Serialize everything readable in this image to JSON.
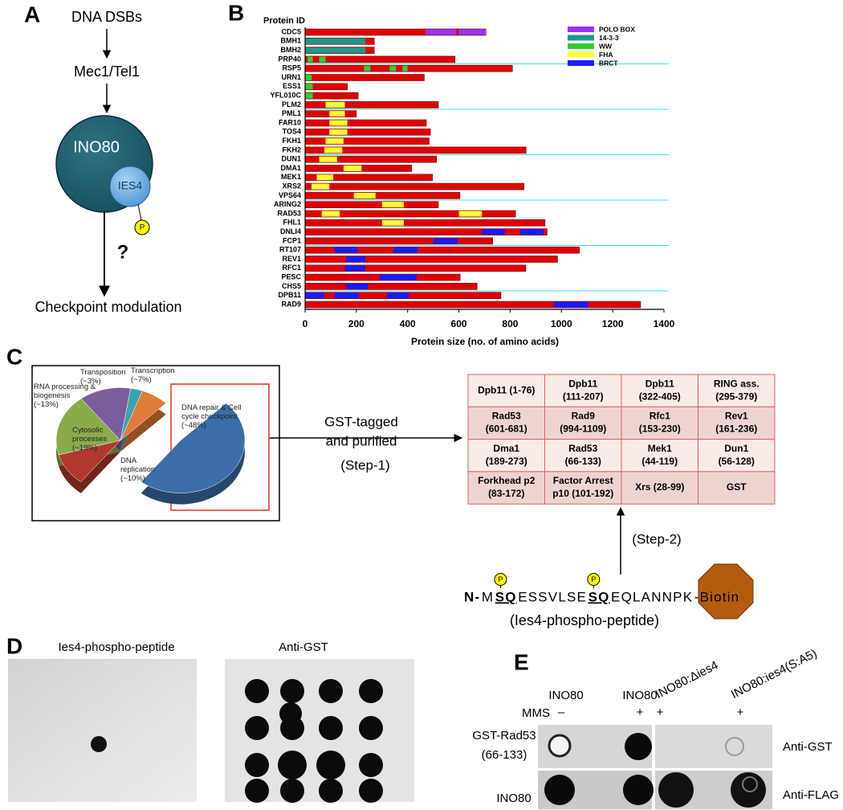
{
  "panel_labels": [
    "A",
    "B",
    "C",
    "D",
    "E"
  ],
  "panel_a": {
    "top": "DNA DSBs",
    "kinase": "Mec1/Tel1",
    "complex": "INO80",
    "subunit": "IES4",
    "phospho": "P",
    "question": "?",
    "outcome": "Checkpoint modulation"
  },
  "chart_data": [
    {
      "type": "bar",
      "horizontal": true,
      "y_header": "Protein ID",
      "xlabel": "Protein size (no. of amino acids)",
      "categories": [
        "CDC5",
        "BMH1",
        "BMH2",
        "PRP40",
        "RSP5",
        "URN1",
        "ESS1",
        "YFL010C",
        "PLM2",
        "PML1",
        "FAR10",
        "TOS4",
        "FKH1",
        "FKH2",
        "DUN1",
        "DMA1",
        "MEK1",
        "XRS2",
        "VPS64",
        "ARING2",
        "RAD53",
        "FHL1",
        "DNLI4",
        "FCP1",
        "RT107",
        "REV1",
        "RFC1",
        "PESC",
        "CHS5",
        "DPB11",
        "RAD9"
      ],
      "values": [
        705,
        270,
        270,
        585,
        809,
        465,
        165,
        207,
        520,
        200,
        473,
        489,
        484,
        862,
        513,
        416,
        497,
        854,
        604,
        520,
        821,
        936,
        944,
        732,
        1070,
        985,
        861,
        605,
        671,
        764,
        1309
      ],
      "color": "#e00000",
      "domains": [
        {
          "name": "POLO BOX",
          "color": "#9933ff",
          "intervals": [
            [
              [
                470,
                590
              ],
              [
                600,
                705
              ]
            ],
            [],
            [],
            [],
            [],
            [],
            [],
            [],
            [],
            [],
            [],
            [],
            [],
            [],
            [],
            [],
            [],
            [],
            [],
            [],
            [],
            [],
            [],
            [],
            [],
            [],
            [],
            [],
            [],
            [],
            []
          ]
        },
        {
          "name": "14-3-3",
          "color": "#1a9a8a",
          "intervals": [
            [],
            [
              [
                0,
                235
              ]
            ],
            [
              [
                0,
                235
              ]
            ],
            [],
            [],
            [],
            [],
            [],
            [],
            [],
            [],
            [],
            [],
            [],
            [],
            [],
            [],
            [],
            [],
            [],
            [],
            [],
            [],
            [],
            [],
            [],
            [],
            [],
            [],
            [],
            []
          ]
        },
        {
          "name": "WW",
          "color": "#33cc33",
          "intervals": [
            [],
            [],
            [],
            [
              [
                10,
                30
              ],
              [
                55,
                80
              ]
            ],
            [
              [
                230,
                255
              ],
              [
                330,
                355
              ],
              [
                380,
                400
              ]
            ],
            [
              [
                0,
                25
              ]
            ],
            [
              [
                0,
                30
              ]
            ],
            [
              [
                0,
                30
              ]
            ],
            [],
            [],
            [],
            [],
            [],
            [],
            [],
            [],
            [],
            [],
            [],
            [],
            [],
            [],
            [],
            [],
            [],
            [],
            [],
            [],
            [],
            [],
            []
          ]
        },
        {
          "name": "FHA",
          "color": "#ffff33",
          "intervals": [
            [],
            [],
            [],
            [],
            [],
            [],
            [],
            [],
            [
              [
                80,
                155
              ]
            ],
            [
              [
                95,
                155
              ]
            ],
            [
              [
                95,
                165
              ]
            ],
            [
              [
                95,
                165
              ]
            ],
            [
              [
                80,
                150
              ]
            ],
            [
              [
                75,
                145
              ]
            ],
            [
              [
                55,
                125
              ]
            ],
            [
              [
                150,
                220
              ]
            ],
            [
              [
                45,
                110
              ]
            ],
            [
              [
                25,
                95
              ]
            ],
            [
              [
                190,
                275
              ]
            ],
            [
              [
                300,
                385
              ]
            ],
            [
              [
                65,
                135
              ],
              [
                600,
                690
              ]
            ],
            [
              [
                300,
                385
              ]
            ],
            [],
            [],
            [],
            [],
            [],
            [],
            [],
            [],
            []
          ]
        },
        {
          "name": "BRCT",
          "color": "#1a1aff",
          "intervals": [
            [],
            [],
            [],
            [],
            [],
            [],
            [],
            [],
            [],
            [],
            [],
            [],
            [],
            [],
            [],
            [],
            [],
            [],
            [],
            [],
            [],
            [],
            [
              [
                690,
                780
              ],
              [
                840,
                930
              ]
            ],
            [
              [
                500,
                595
              ]
            ],
            [
              [
                115,
                205
              ],
              [
                345,
                440
              ]
            ],
            [
              [
                160,
                235
              ]
            ],
            [
              [
                155,
                235
              ]
            ],
            [
              [
                290,
                435
              ]
            ],
            [
              [
                160,
                245
              ]
            ],
            [
              [
                0,
                75
              ],
              [
                115,
                210
              ],
              [
                320,
                405
              ]
            ],
            [
              [
                970,
                1105
              ]
            ]
          ]
        }
      ],
      "xlim": [
        0,
        1400
      ],
      "xticks": [
        0,
        200,
        400,
        600,
        800,
        1000,
        1200,
        1400
      ]
    },
    {
      "type": "pie",
      "categories": [
        "Transcription",
        "DNA repair & Cell cycle checkpoint",
        "DNA replication",
        "Cytosolic processes",
        "RNA processing & biogenesis",
        "Transposition"
      ],
      "values": [
        7,
        48,
        10,
        19,
        13,
        3
      ],
      "value_labels": [
        "(~7%)",
        "(~48%)",
        "(~10%)",
        "(~19%)",
        "(~13%)",
        "(~3%)"
      ],
      "colors": [
        "#e07b39",
        "#3b6ea8",
        "#b0392f",
        "#8bab4b",
        "#7b5c9c",
        "#3aa3ad"
      ],
      "explode": [
        false,
        true,
        false,
        false,
        false,
        false
      ]
    }
  ],
  "panel_c": {
    "arrow_label": [
      "GST-tagged",
      "and purified",
      "(Step-1)"
    ],
    "table": {
      "rows": [
        [
          [
            "Dpb11 (1-76)"
          ],
          [
            "Dpb11",
            "(111-207)"
          ],
          [
            "Dpb11",
            "(322-405)"
          ],
          [
            "RING ass.",
            "(295-379)"
          ]
        ],
        [
          [
            "Rad53",
            "(601-681)"
          ],
          [
            "Rad9",
            "(994-1109)"
          ],
          [
            "Rfc1",
            "(153-230)"
          ],
          [
            "Rev1",
            "(161-236)"
          ]
        ],
        [
          [
            "Dma1",
            "(189-273)"
          ],
          [
            "Rad53",
            "(66-133)"
          ],
          [
            "Mek1",
            "(44-119)"
          ],
          [
            "Dun1",
            "(56-128)"
          ]
        ],
        [
          [
            "Forkhead p2",
            "(83-172)"
          ],
          [
            "Factor Arrest",
            "p10 (101-192)"
          ],
          [
            "Xrs (28-99)"
          ],
          [
            "GST"
          ]
        ]
      ]
    },
    "step2": "(Step-2)",
    "peptide": {
      "segments": [
        "N-",
        "M",
        {
          "text": "SQ",
          "phospho": "P"
        },
        "ESSVLSE",
        {
          "text": "SQ",
          "phospho": "P"
        },
        "EQLANNPK",
        "-Biotin"
      ],
      "caption": "(Ies4-phospho-peptide)"
    }
  },
  "panel_d": {
    "titles": [
      "Ies4-phospho-peptide",
      "Anti-GST"
    ]
  },
  "panel_e": {
    "columns": [
      "INO80",
      "INO80",
      "INO80:Δies4",
      "INO80:ies4(S:A5)"
    ],
    "mms_label": "MMS",
    "mms": [
      "–",
      "+",
      "+",
      "+"
    ],
    "rows": [
      [
        "GST-Rad53",
        "(66-133)"
      ],
      [
        "INO80"
      ]
    ],
    "antibodies": [
      "Anti-GST",
      "Anti-FLAG"
    ]
  }
}
